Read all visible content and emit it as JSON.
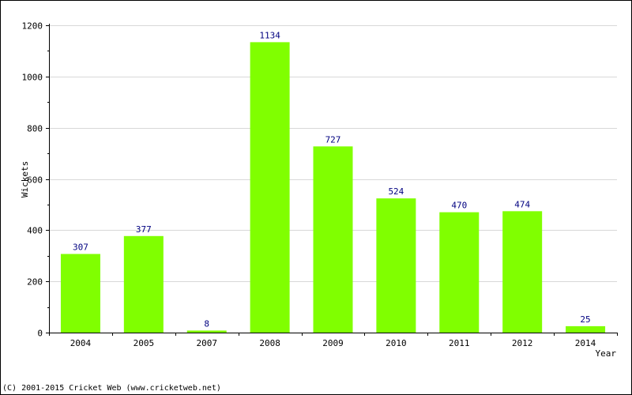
{
  "chart_data": {
    "type": "bar",
    "title": "",
    "xlabel": "Year",
    "ylabel": "Wickets",
    "categories": [
      "2004",
      "2005",
      "2007",
      "2008",
      "2009",
      "2010",
      "2011",
      "2012",
      "2014"
    ],
    "values": [
      307,
      377,
      8,
      1134,
      727,
      524,
      470,
      474,
      25
    ],
    "ylim": [
      0,
      1200
    ],
    "yticks": [
      0,
      200,
      400,
      600,
      800,
      1000,
      1200
    ],
    "grid": true,
    "legend": "none",
    "colors": {
      "bar": "#80ff00",
      "value_label": "#000080",
      "grid": "#d8d8d8",
      "axis": "#000000"
    }
  },
  "footer": {
    "copyright": "(C) 2001-2015 Cricket Web (www.cricketweb.net)"
  }
}
